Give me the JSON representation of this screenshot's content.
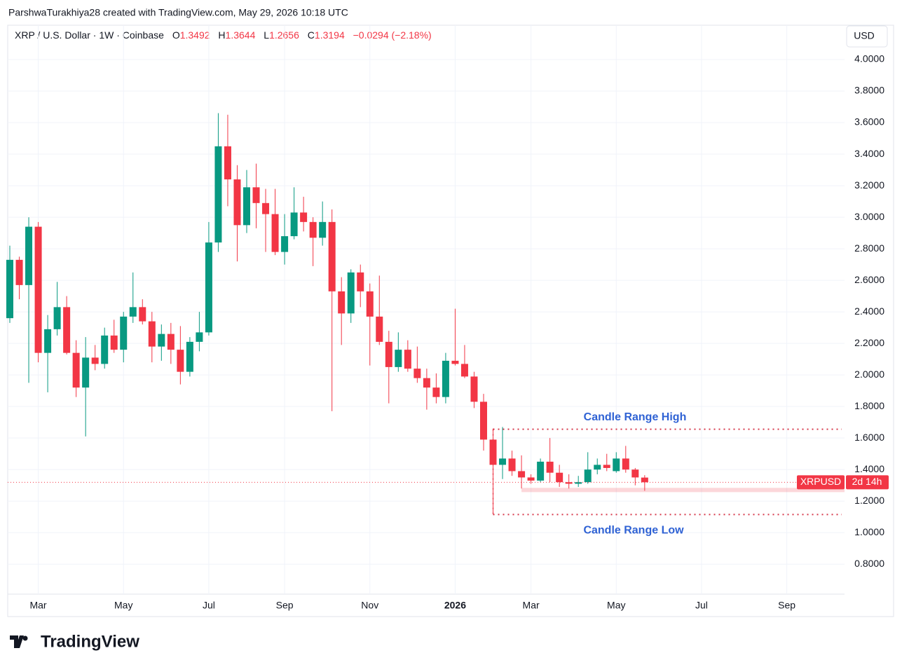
{
  "credit": "ParshwaTurakhiya28 created with TradingView.com, May 29, 2026 10:18 UTC",
  "header": {
    "symbol": "XRP / U.S. Dollar · 1W · Coinbase",
    "o_label": "O",
    "o": "1.3492",
    "h_label": "H",
    "h": "1.3644",
    "l_label": "L",
    "l": "1.2656",
    "c_label": "C",
    "c": "1.3194",
    "change": "−0.0294 (−2.18%)"
  },
  "currency": "USD",
  "brand": "TradingView",
  "chart_data": {
    "type": "candlestick",
    "categories": [
      null,
      null,
      null,
      "Mar",
      null,
      null,
      null,
      null,
      null,
      null,
      null,
      null,
      "May",
      null,
      null,
      null,
      null,
      null,
      null,
      null,
      null,
      "Jul",
      null,
      null,
      null,
      null,
      null,
      null,
      null,
      "Sep",
      null,
      null,
      null,
      null,
      null,
      null,
      null,
      null,
      "Nov",
      null,
      null,
      null,
      null,
      null,
      null,
      null,
      null,
      "2026",
      null,
      null,
      null,
      null,
      null,
      null,
      null,
      "Mar",
      null,
      null,
      null,
      null,
      null,
      null,
      null,
      null,
      "May",
      null,
      null,
      null,
      null,
      null,
      null,
      null,
      null,
      "Jul",
      null,
      null,
      null,
      null,
      null,
      null,
      null,
      null,
      "Sep",
      null,
      null,
      null,
      null,
      null
    ],
    "open": [
      2.36,
      2.73,
      2.57,
      2.94,
      2.14,
      2.29,
      2.43,
      2.14,
      1.92,
      2.11,
      2.07,
      2.25,
      2.16,
      2.37,
      2.43,
      2.34,
      2.18,
      2.26,
      2.16,
      2.02,
      2.21,
      2.27,
      2.84,
      3.45,
      3.24,
      2.95,
      3.19,
      3.09,
      3.02,
      2.78,
      2.88,
      3.03,
      2.97,
      2.87,
      2.97,
      2.53,
      2.39,
      2.65,
      2.53,
      2.37,
      2.21,
      2.05,
      2.16,
      2.04,
      1.98,
      1.92,
      1.86,
      2.09,
      2.07,
      1.99,
      1.83,
      1.59,
      1.43,
      1.47,
      1.39,
      1.35,
      1.33,
      1.45,
      1.38,
      1.32,
      1.31,
      1.32,
      1.4,
      1.43,
      1.39,
      1.47,
      1.4,
      1.3492,
      null,
      null,
      null,
      null,
      null,
      null,
      null,
      null,
      null,
      null,
      null,
      null,
      null,
      null,
      null,
      null,
      null,
      null,
      null,
      null
    ],
    "high": [
      2.82,
      2.75,
      3.0,
      2.97,
      2.38,
      2.59,
      2.5,
      2.22,
      2.24,
      2.19,
      2.3,
      2.35,
      2.4,
      2.65,
      2.48,
      2.4,
      2.32,
      2.33,
      2.31,
      2.24,
      2.4,
      2.97,
      3.66,
      3.65,
      3.33,
      3.3,
      3.34,
      3.18,
      3.18,
      3.02,
      3.19,
      3.13,
      3.0,
      3.1,
      3.05,
      2.62,
      2.67,
      2.7,
      2.58,
      2.63,
      2.28,
      2.27,
      2.22,
      2.18,
      2.04,
      2.01,
      2.14,
      2.42,
      2.19,
      2.02,
      1.88,
      1.66,
      1.67,
      1.52,
      1.49,
      1.37,
      1.47,
      1.6,
      1.43,
      1.37,
      1.36,
      1.51,
      1.47,
      1.5,
      1.51,
      1.55,
      1.41,
      1.3644,
      null,
      null,
      null,
      null,
      null,
      null,
      null,
      null,
      null,
      null,
      null,
      null,
      null,
      null,
      null,
      null,
      null,
      null,
      null,
      null
    ],
    "low": [
      2.33,
      2.48,
      1.95,
      2.08,
      1.89,
      2.25,
      2.13,
      1.86,
      1.61,
      2.03,
      2.04,
      2.14,
      2.08,
      2.33,
      2.32,
      2.08,
      2.09,
      2.07,
      1.94,
      1.99,
      2.15,
      2.25,
      2.78,
      3.07,
      2.72,
      2.9,
      2.93,
      2.78,
      2.76,
      2.7,
      2.86,
      2.91,
      2.69,
      2.82,
      1.77,
      2.19,
      2.33,
      2.43,
      2.06,
      2.19,
      1.82,
      2.02,
      2.02,
      1.95,
      1.78,
      1.82,
      1.82,
      2.06,
      1.98,
      1.79,
      1.52,
      1.12,
      1.34,
      1.36,
      1.28,
      1.31,
      1.32,
      1.32,
      1.29,
      1.28,
      1.29,
      1.31,
      1.37,
      1.39,
      1.38,
      1.38,
      1.3,
      1.2656,
      null,
      null,
      null,
      null,
      null,
      null,
      null,
      null,
      null,
      null,
      null,
      null,
      null,
      null,
      null,
      null,
      null,
      null,
      null,
      null
    ],
    "close": [
      2.73,
      2.57,
      2.94,
      2.14,
      2.29,
      2.43,
      2.14,
      1.92,
      2.11,
      2.07,
      2.25,
      2.16,
      2.37,
      2.43,
      2.34,
      2.18,
      2.26,
      2.16,
      2.02,
      2.21,
      2.27,
      2.84,
      3.45,
      3.24,
      2.95,
      3.19,
      3.09,
      3.02,
      2.78,
      2.88,
      3.03,
      2.97,
      2.87,
      2.97,
      2.53,
      2.39,
      2.65,
      2.53,
      2.37,
      2.21,
      2.05,
      2.16,
      2.04,
      1.98,
      1.92,
      1.86,
      2.09,
      2.07,
      1.99,
      1.83,
      1.59,
      1.43,
      1.47,
      1.39,
      1.35,
      1.33,
      1.45,
      1.38,
      1.32,
      1.31,
      1.32,
      1.4,
      1.43,
      1.41,
      1.47,
      1.4,
      1.35,
      1.3194,
      null,
      null,
      null,
      null,
      null,
      null,
      null,
      null,
      null,
      null,
      null,
      null,
      null,
      null,
      null,
      null,
      null,
      null,
      null,
      null
    ],
    "up_color": "#089981",
    "down_color": "#f23645",
    "ylim": [
      0.61,
      4.2
    ],
    "yticks": [
      {
        "value": 0.8,
        "label": "0.8000"
      },
      {
        "value": 1.0,
        "label": "1.0000"
      },
      {
        "value": 1.2,
        "label": "1.2000"
      },
      {
        "value": 1.4,
        "label": "1.4000"
      },
      {
        "value": 1.6,
        "label": "1.6000"
      },
      {
        "value": 1.8,
        "label": "1.8000"
      },
      {
        "value": 2.0,
        "label": "2.0000"
      },
      {
        "value": 2.2,
        "label": "2.2000"
      },
      {
        "value": 2.4,
        "label": "2.4000"
      },
      {
        "value": 2.6,
        "label": "2.6000"
      },
      {
        "value": 2.8,
        "label": "2.8000"
      },
      {
        "value": 3.0,
        "label": "3.0000"
      },
      {
        "value": 3.2,
        "label": "3.2000"
      },
      {
        "value": 3.4,
        "label": "3.4000"
      },
      {
        "value": 3.6,
        "label": "3.6000"
      },
      {
        "value": 3.8,
        "label": "3.8000"
      },
      {
        "value": 4.0,
        "label": "4.0000"
      }
    ],
    "grid": true,
    "range_high": {
      "text": "Candle Range High",
      "value": 1.656
    },
    "range_low": {
      "text": "Candle Range Low",
      "value": 1.115
    },
    "zone": [
      1.257,
      1.284
    ],
    "price_tag": {
      "symbol": "XRPUSD",
      "countdown": "2d 14h"
    }
  }
}
